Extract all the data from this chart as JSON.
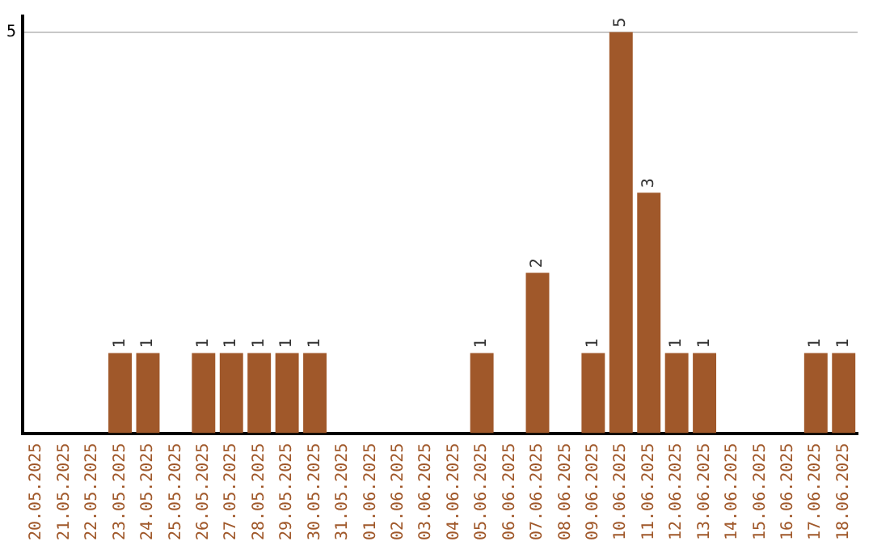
{
  "chart_data": {
    "type": "bar",
    "categories": [
      "20.05.2025",
      "21.05.2025",
      "22.05.2025",
      "23.05.2025",
      "24.05.2025",
      "25.05.2025",
      "26.05.2025",
      "27.05.2025",
      "28.05.2025",
      "29.05.2025",
      "30.05.2025",
      "31.05.2025",
      "01.06.2025",
      "02.06.2025",
      "03.06.2025",
      "04.06.2025",
      "05.06.2025",
      "06.06.2025",
      "07.06.2025",
      "08.06.2025",
      "09.06.2025",
      "10.06.2025",
      "11.06.2025",
      "12.06.2025",
      "13.06.2025",
      "14.06.2025",
      "15.06.2025",
      "16.06.2025",
      "17.06.2025",
      "18.06.2025"
    ],
    "values": [
      0,
      0,
      0,
      1,
      1,
      0,
      1,
      1,
      1,
      1,
      1,
      0,
      0,
      0,
      0,
      0,
      1,
      0,
      2,
      0,
      1,
      5,
      3,
      1,
      1,
      0,
      0,
      0,
      1,
      1
    ],
    "value_labels": [
      null,
      null,
      null,
      "1",
      "1",
      null,
      "1",
      "1",
      "1",
      "1",
      "1",
      null,
      null,
      null,
      null,
      null,
      "1",
      null,
      "2",
      null,
      "1",
      "5",
      "3",
      "1",
      "1",
      null,
      null,
      null,
      "1",
      "1"
    ],
    "color": "#a0582a",
    "ylim": [
      0,
      5.2
    ],
    "yticks": [
      5
    ],
    "grid": "y",
    "legend": false
  }
}
